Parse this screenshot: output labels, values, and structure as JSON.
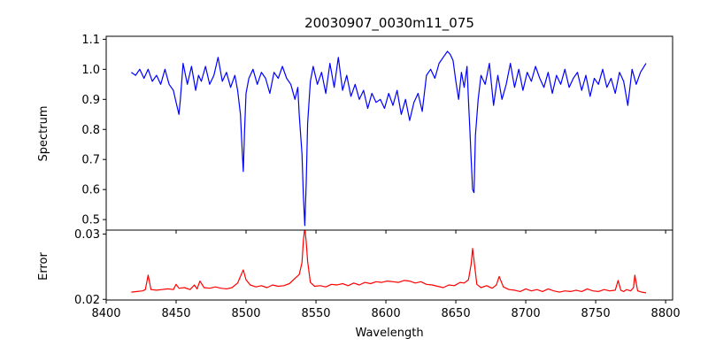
{
  "chart_data": [
    {
      "type": "line",
      "title": "20030907_0030m11_075",
      "xlabel": "",
      "ylabel": "Spectrum",
      "xlim": [
        8400,
        8805
      ],
      "ylim": [
        0.465,
        1.11
      ],
      "xticks": [
        8400,
        8450,
        8500,
        8550,
        8600,
        8650,
        8700,
        8750,
        8800
      ],
      "yticks": [
        0.5,
        0.6,
        0.7,
        0.8,
        0.9,
        1.0,
        1.1
      ],
      "ytick_labels": [
        "0.5",
        "0.6",
        "0.7",
        "0.8",
        "0.9",
        "1.0",
        "1.1"
      ],
      "show_xtick_labels": false,
      "grid": false,
      "series": [
        {
          "color": "#0000ff",
          "x": [
            8418,
            8421,
            8424,
            8427,
            8430,
            8433,
            8436,
            8439,
            8442,
            8445,
            8448,
            8450,
            8452,
            8453,
            8455,
            8458,
            8461,
            8464,
            8466,
            8468,
            8471,
            8474,
            8477,
            8480,
            8483,
            8486,
            8489,
            8492,
            8494,
            8496,
            8497,
            8498,
            8499,
            8500,
            8502,
            8505,
            8508,
            8511,
            8514,
            8517,
            8520,
            8523,
            8526,
            8529,
            8532,
            8535,
            8537,
            8538,
            8540,
            8541,
            8542,
            8543,
            8544,
            8546,
            8548,
            8551,
            8554,
            8557,
            8560,
            8563,
            8566,
            8569,
            8572,
            8575,
            8578,
            8581,
            8584,
            8587,
            8590,
            8593,
            8596,
            8599,
            8602,
            8605,
            8608,
            8611,
            8614,
            8617,
            8620,
            8623,
            8626,
            8629,
            8632,
            8635,
            8638,
            8641,
            8644,
            8646,
            8648,
            8650,
            8652,
            8654,
            8656,
            8658,
            8659,
            8660,
            8661,
            8662,
            8663,
            8664,
            8666,
            8668,
            8671,
            8674,
            8677,
            8680,
            8683,
            8686,
            8689,
            8692,
            8695,
            8698,
            8701,
            8704,
            8707,
            8710,
            8713,
            8716,
            8719,
            8722,
            8725,
            8728,
            8731,
            8734,
            8737,
            8740,
            8743,
            8746,
            8749,
            8752,
            8755,
            8758,
            8761,
            8764,
            8767,
            8770,
            8773,
            8776,
            8779,
            8782,
            8786
          ],
          "y": [
            0.99,
            0.98,
            1.0,
            0.97,
            1.0,
            0.96,
            0.98,
            0.95,
            1.0,
            0.95,
            0.93,
            0.89,
            0.85,
            0.9,
            1.02,
            0.95,
            1.01,
            0.93,
            0.98,
            0.96,
            1.01,
            0.95,
            0.98,
            1.04,
            0.96,
            0.99,
            0.94,
            0.98,
            0.93,
            0.85,
            0.75,
            0.66,
            0.8,
            0.92,
            0.97,
            1.0,
            0.95,
            0.99,
            0.97,
            0.92,
            0.99,
            0.97,
            1.01,
            0.97,
            0.95,
            0.9,
            0.94,
            0.85,
            0.72,
            0.58,
            0.48,
            0.62,
            0.82,
            0.96,
            1.01,
            0.95,
            0.99,
            0.92,
            1.02,
            0.94,
            1.04,
            0.93,
            0.98,
            0.91,
            0.95,
            0.9,
            0.93,
            0.87,
            0.92,
            0.89,
            0.9,
            0.87,
            0.92,
            0.88,
            0.93,
            0.85,
            0.9,
            0.83,
            0.89,
            0.92,
            0.86,
            0.98,
            1.0,
            0.97,
            1.02,
            1.04,
            1.06,
            1.05,
            1.03,
            0.96,
            0.9,
            0.99,
            0.94,
            1.01,
            0.9,
            0.8,
            0.7,
            0.6,
            0.59,
            0.78,
            0.9,
            0.98,
            0.95,
            1.02,
            0.88,
            0.98,
            0.9,
            0.95,
            1.02,
            0.94,
            1.0,
            0.93,
            0.99,
            0.96,
            1.01,
            0.97,
            0.94,
            0.99,
            0.92,
            0.98,
            0.95,
            1.0,
            0.94,
            0.97,
            0.99,
            0.93,
            0.98,
            0.91,
            0.97,
            0.95,
            1.0,
            0.94,
            0.97,
            0.92,
            0.99,
            0.96,
            0.88,
            1.0,
            0.95,
            0.99,
            1.02
          ]
        }
      ]
    },
    {
      "type": "line",
      "title": "",
      "xlabel": "Wavelength",
      "ylabel": "Error",
      "xlim": [
        8400,
        8805
      ],
      "ylim": [
        0.0199,
        0.0306
      ],
      "xticks": [
        8400,
        8450,
        8500,
        8550,
        8600,
        8650,
        8700,
        8750,
        8800
      ],
      "xtick_labels": [
        "8400",
        "8450",
        "8500",
        "8550",
        "8600",
        "8650",
        "8700",
        "8750",
        "8800"
      ],
      "yticks": [
        0.02,
        0.03
      ],
      "ytick_labels": [
        "0.02",
        "0.03"
      ],
      "show_xtick_labels": true,
      "grid": false,
      "series": [
        {
          "color": "#ff0000",
          "x": [
            8418,
            8422,
            8426,
            8428,
            8430,
            8432,
            8436,
            8440,
            8444,
            8448,
            8450,
            8452,
            8456,
            8460,
            8463,
            8465,
            8467,
            8470,
            8474,
            8478,
            8482,
            8486,
            8490,
            8494,
            8496,
            8498,
            8500,
            8503,
            8507,
            8511,
            8515,
            8519,
            8523,
            8527,
            8531,
            8535,
            8538,
            8540,
            8541,
            8542,
            8543,
            8544,
            8546,
            8549,
            8553,
            8557,
            8561,
            8565,
            8569,
            8573,
            8577,
            8581,
            8585,
            8589,
            8593,
            8597,
            8601,
            8605,
            8609,
            8613,
            8617,
            8621,
            8625,
            8629,
            8633,
            8637,
            8641,
            8645,
            8649,
            8653,
            8656,
            8659,
            8661,
            8662,
            8663,
            8665,
            8668,
            8672,
            8676,
            8679,
            8681,
            8684,
            8688,
            8692,
            8696,
            8700,
            8704,
            8708,
            8712,
            8716,
            8720,
            8724,
            8728,
            8732,
            8736,
            8740,
            8744,
            8748,
            8752,
            8756,
            8760,
            8764,
            8766,
            8768,
            8770,
            8772,
            8775,
            8777,
            8778,
            8780,
            8783,
            8786
          ],
          "y": [
            0.0211,
            0.0212,
            0.0213,
            0.0215,
            0.0237,
            0.0215,
            0.0214,
            0.0215,
            0.0216,
            0.0215,
            0.0223,
            0.0217,
            0.0218,
            0.0215,
            0.0222,
            0.0216,
            0.0228,
            0.0218,
            0.0217,
            0.0219,
            0.0217,
            0.0216,
            0.0218,
            0.0225,
            0.0235,
            0.0245,
            0.023,
            0.0222,
            0.0219,
            0.0221,
            0.0218,
            0.0222,
            0.022,
            0.0221,
            0.0224,
            0.0232,
            0.0238,
            0.0256,
            0.029,
            0.031,
            0.0288,
            0.0258,
            0.0226,
            0.022,
            0.0221,
            0.0219,
            0.0223,
            0.0222,
            0.0224,
            0.0221,
            0.0225,
            0.0222,
            0.0226,
            0.0224,
            0.0227,
            0.0226,
            0.0228,
            0.0227,
            0.0226,
            0.0229,
            0.0228,
            0.0225,
            0.0227,
            0.0223,
            0.0222,
            0.022,
            0.0218,
            0.0222,
            0.0221,
            0.0226,
            0.0225,
            0.023,
            0.0254,
            0.0278,
            0.026,
            0.0223,
            0.0218,
            0.0221,
            0.0217,
            0.0222,
            0.0235,
            0.0219,
            0.0215,
            0.0214,
            0.0212,
            0.0216,
            0.0213,
            0.0215,
            0.0212,
            0.0216,
            0.0213,
            0.0211,
            0.0213,
            0.0212,
            0.0214,
            0.0212,
            0.0216,
            0.0213,
            0.0212,
            0.0215,
            0.0213,
            0.0214,
            0.0229,
            0.0214,
            0.0212,
            0.0215,
            0.0213,
            0.0218,
            0.0237,
            0.0213,
            0.0211,
            0.021
          ]
        }
      ]
    }
  ]
}
